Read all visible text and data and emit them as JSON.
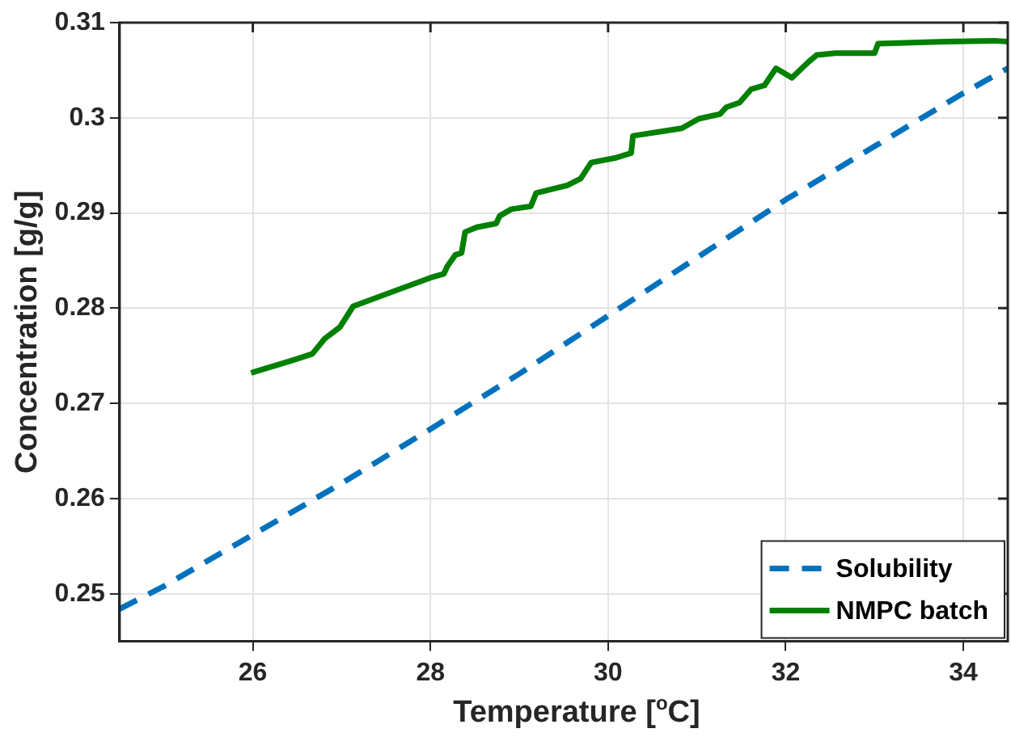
{
  "chart_data": {
    "type": "line",
    "xlabel": "Temperature [$^{o}$C]",
    "ylabel": "Concentration [g/g]",
    "xlim": [
      24.5,
      34.5
    ],
    "xticks": [
      26,
      28,
      30,
      32,
      34
    ],
    "ylim": [
      0.245,
      0.31
    ],
    "yticks": [
      0.25,
      0.26,
      0.27,
      0.28,
      0.29,
      0.3,
      0.31
    ],
    "grid": true,
    "legend": "bottom right",
    "marker": "none",
    "series": [
      {
        "name": "Solubility",
        "color": "#0072bd",
        "line_style": "dashed",
        "x": [
          24.5,
          25,
          26,
          27,
          28,
          29,
          30,
          31,
          32,
          33,
          34,
          34.5
        ],
        "values": [
          0.2484,
          0.2508,
          0.2562,
          0.2616,
          0.2673,
          0.2731,
          0.2792,
          0.2853,
          0.2914,
          0.297,
          0.3026,
          0.3052
        ]
      },
      {
        "name": "NMPC batch",
        "color": "#008000",
        "line_style": "solid",
        "x": [
          25.98,
          26.44,
          26.67,
          26.81,
          26.98,
          27.13,
          28.0,
          28.15,
          28.19,
          28.28,
          28.35,
          28.39,
          28.52,
          28.74,
          28.78,
          28.91,
          29.13,
          29.19,
          29.54,
          29.69,
          29.81,
          30.09,
          30.26,
          30.28,
          30.83,
          31.02,
          31.26,
          31.33,
          31.48,
          31.61,
          31.76,
          31.89,
          32.07,
          32.26,
          32.35,
          32.56,
          33.0,
          33.04,
          33.8,
          34.35,
          34.5
        ],
        "values": [
          0.2732,
          0.2745,
          0.2752,
          0.2768,
          0.278,
          0.2802,
          0.2832,
          0.2836,
          0.2844,
          0.2856,
          0.2858,
          0.288,
          0.2885,
          0.2889,
          0.2897,
          0.2904,
          0.2907,
          0.2921,
          0.2929,
          0.2936,
          0.2953,
          0.2958,
          0.2963,
          0.2981,
          0.2989,
          0.2999,
          0.3004,
          0.3011,
          0.3016,
          0.303,
          0.3034,
          0.3052,
          0.3042,
          0.3059,
          0.3066,
          0.3068,
          0.3068,
          0.3078,
          0.308,
          0.3081,
          0.308
        ]
      }
    ]
  }
}
